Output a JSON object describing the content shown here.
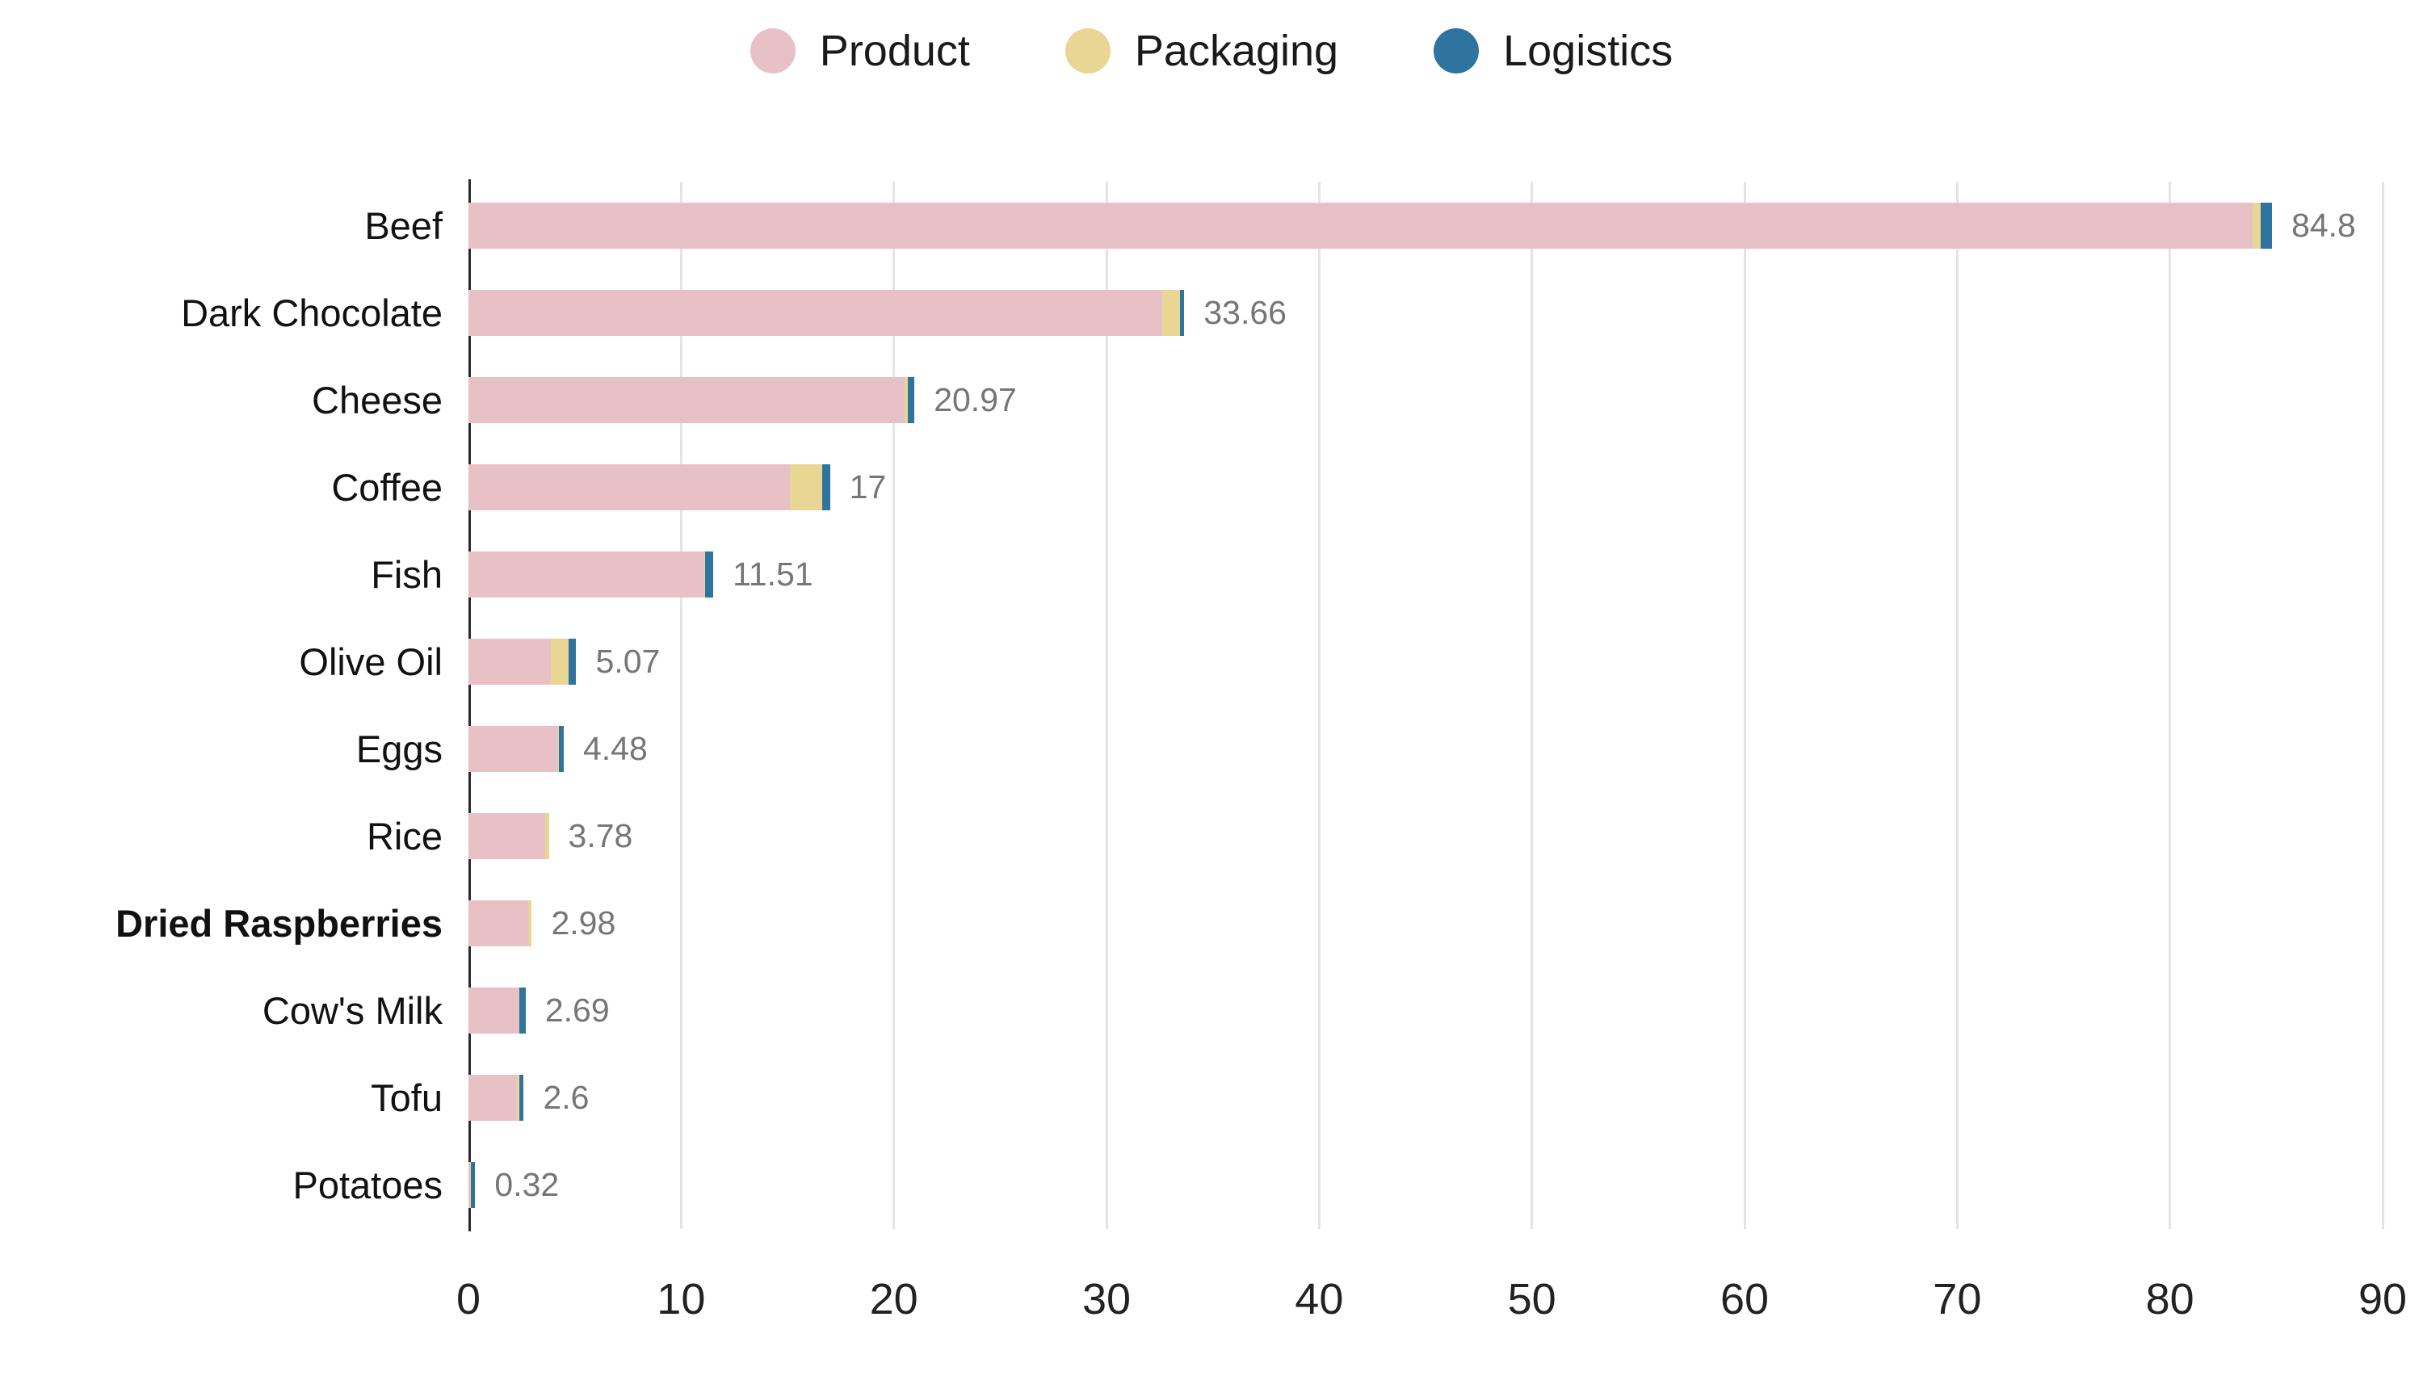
{
  "chart_data": {
    "type": "bar",
    "orientation": "horizontal",
    "stacked": true,
    "title": "",
    "xlabel": "",
    "ylabel": "",
    "xlim": [
      0,
      90
    ],
    "x_ticks": [
      0,
      10,
      20,
      30,
      40,
      50,
      60,
      70,
      80,
      90
    ],
    "grid": true,
    "legend_position": "top",
    "categories": [
      "Beef",
      "Dark Chocolate",
      "Cheese",
      "Coffee",
      "Fish",
      "Olive Oil",
      "Eggs",
      "Rice",
      "Dried Raspberries",
      "Cow's Milk",
      "Tofu",
      "Potatoes"
    ],
    "bold_category": "Dried Raspberries",
    "series": [
      {
        "name": "Product",
        "color": "#e8c1c7",
        "values": [
          83.9,
          32.62,
          20.5,
          15.1,
          11.1,
          3.88,
          4.2,
          3.62,
          2.82,
          2.39,
          2.26,
          0.08
        ]
      },
      {
        "name": "Packaging",
        "color": "#e9d694",
        "values": [
          0.38,
          0.84,
          0.17,
          1.55,
          0.01,
          0.83,
          0.06,
          0.16,
          0.16,
          0.01,
          0.15,
          0.02
        ]
      },
      {
        "name": "Logistics",
        "color": "#2f739f",
        "values": [
          0.52,
          0.2,
          0.3,
          0.35,
          0.4,
          0.36,
          0.22,
          0.0,
          0.0,
          0.29,
          0.19,
          0.22
        ]
      }
    ],
    "totals": [
      84.8,
      33.66,
      20.97,
      17,
      11.51,
      5.07,
      4.48,
      3.78,
      2.98,
      2.69,
      2.6,
      0.32
    ],
    "total_labels": [
      "84.8",
      "33.66",
      "20.97",
      "17",
      "11.51",
      "5.07",
      "4.48",
      "3.78",
      "2.98",
      "2.69",
      "2.6",
      "0.32"
    ],
    "colors": {
      "background": "#ffffff",
      "value_label": "#767676",
      "gridline": "#e4e4e4",
      "axis_line": "#2b2b2b",
      "tick_label": "#222222",
      "category_label": "#111111",
      "legend_label": "#1a1a1a"
    }
  }
}
